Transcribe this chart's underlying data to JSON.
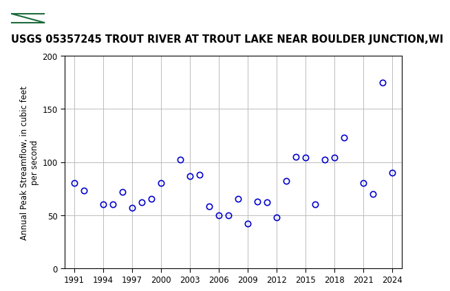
{
  "title": "USGS 05357245 TROUT RIVER AT TROUT LAKE NEAR BOULDER JUNCTION,WI",
  "ylabel": "Annual Peak Streamflow, in cubic feet\nper second",
  "xlabel": "",
  "years": [
    1991,
    1992,
    1994,
    1995,
    1996,
    1997,
    1998,
    1999,
    2000,
    2002,
    2003,
    2004,
    2005,
    2006,
    2007,
    2008,
    2009,
    2010,
    2011,
    2012,
    2013,
    2014,
    2015,
    2016,
    2017,
    2018,
    2019,
    2021,
    2022,
    2023,
    2024
  ],
  "values": [
    80,
    73,
    60,
    60,
    72,
    57,
    62,
    65,
    80,
    102,
    87,
    88,
    58,
    50,
    50,
    65,
    42,
    63,
    62,
    48,
    82,
    105,
    104,
    60,
    102,
    104,
    123,
    80,
    70,
    175,
    90
  ],
  "xlim": [
    1990,
    2025
  ],
  "ylim": [
    0,
    200
  ],
  "xticks": [
    1991,
    1994,
    1997,
    2000,
    2003,
    2006,
    2009,
    2012,
    2015,
    2018,
    2021,
    2024
  ],
  "yticks": [
    0,
    50,
    100,
    150,
    200
  ],
  "marker_color": "#0000cc",
  "marker_size": 6,
  "marker_style": "o",
  "grid_color": "#bbbbbb",
  "bg_color": "#ffffff",
  "header_color": "#1b6b3a",
  "title_fontsize": 10.5,
  "ylabel_fontsize": 8.5,
  "tick_fontsize": 8.5
}
